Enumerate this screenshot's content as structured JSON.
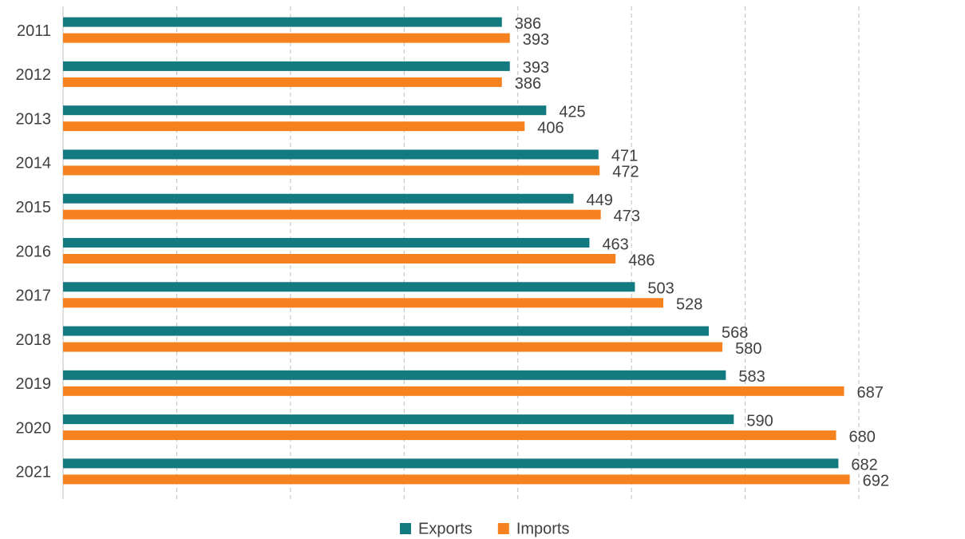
{
  "chart_data": {
    "type": "hbar",
    "categories": [
      "2011",
      "2012",
      "2013",
      "2014",
      "2015",
      "2016",
      "2017",
      "2018",
      "2019",
      "2020",
      "2021"
    ],
    "series": [
      {
        "name": "Exports",
        "color": "#137a7f",
        "values": [
          386,
          393,
          425,
          471,
          449,
          463,
          503,
          568,
          583,
          590,
          682
        ]
      },
      {
        "name": "Imports",
        "color": "#f5821f",
        "values": [
          393,
          386,
          406,
          472,
          473,
          486,
          528,
          580,
          687,
          680,
          692
        ]
      }
    ],
    "xlim": [
      0,
      700
    ],
    "xticks": [
      0,
      100,
      200,
      300,
      400,
      500,
      600,
      700
    ],
    "grid": true,
    "legend": "bottom"
  }
}
